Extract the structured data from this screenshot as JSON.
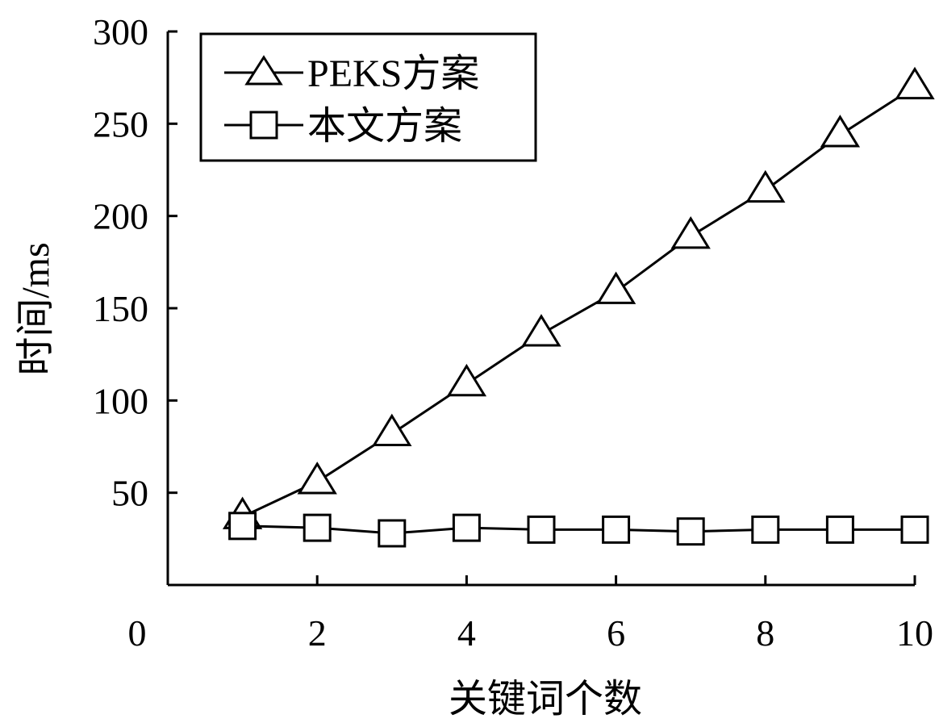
{
  "chart_data": {
    "type": "line",
    "x": [
      1,
      2,
      3,
      4,
      5,
      6,
      7,
      8,
      9,
      10
    ],
    "series": [
      {
        "name": "PEKS方案",
        "marker": "triangle",
        "values": [
          37,
          56,
          82,
          109,
          136,
          159,
          189,
          214,
          244,
          270
        ]
      },
      {
        "name": "本文方案",
        "marker": "square",
        "values": [
          32,
          31,
          28,
          31,
          30,
          30,
          29,
          30,
          30,
          30
        ]
      }
    ],
    "xlabel": "关键词个数",
    "ylabel": "时间/ms",
    "xlim": [
      0,
      10
    ],
    "ylim": [
      0,
      300
    ],
    "x_ticks": [
      "0",
      "2",
      "4",
      "6",
      "8",
      "10"
    ],
    "y_ticks": [
      "50",
      "100",
      "150",
      "200",
      "250",
      "300"
    ],
    "grid": false,
    "legend_position": "top-left",
    "colors": {
      "line": "#000000",
      "background": "#ffffff"
    }
  }
}
